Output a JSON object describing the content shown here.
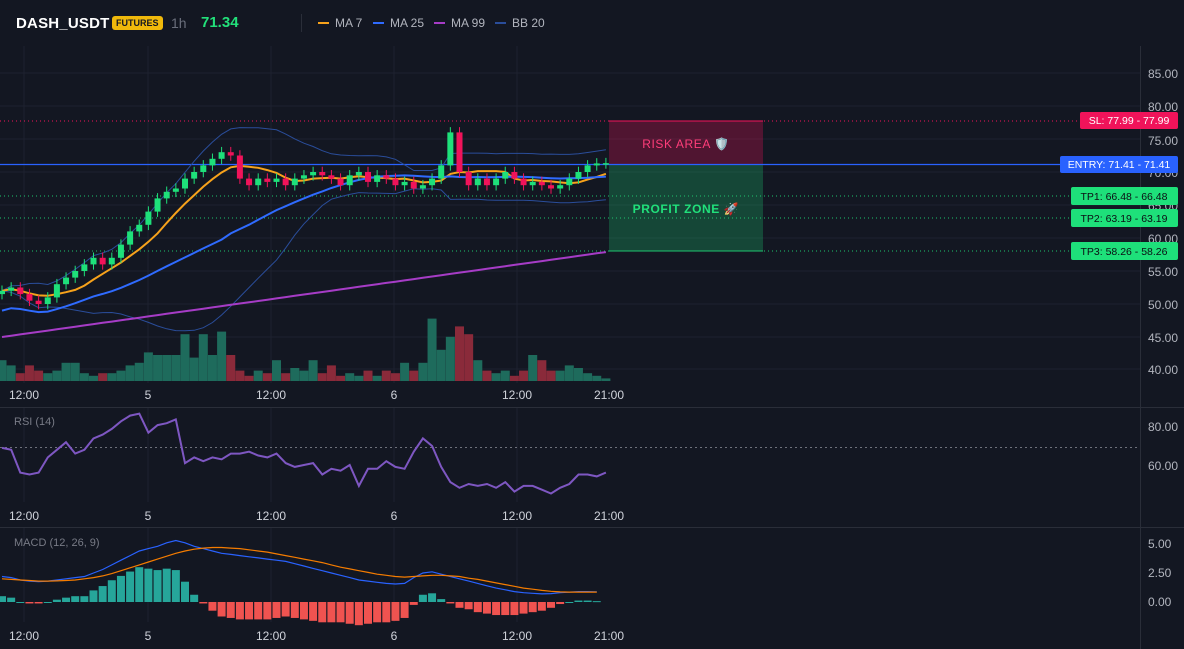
{
  "header": {
    "symbol": "DASH_USDT",
    "market_badge": "FUTURES",
    "timeframe": "1h",
    "last_price": "71.34",
    "legend": [
      {
        "label": "MA 7",
        "color": "#f7a21b"
      },
      {
        "label": "MA 25",
        "color": "#2f6bff"
      },
      {
        "label": "MA 99",
        "color": "#a63cc6"
      },
      {
        "label": "BB 20",
        "color": "#2a4d9a"
      }
    ]
  },
  "trade": {
    "sl_label": "SL: 77.99 - 77.99",
    "entry_label": "ENTRY: 71.41 - 71.41",
    "tp1_label": "TP1: 66.48 - 66.48",
    "tp2_label": "TP2: 63.19 - 63.19",
    "tp3_label": "TP3: 58.26 - 58.26",
    "risk_text": "RISK AREA 🛡️",
    "profit_text": "PROFIT ZONE 🚀",
    "sl": 77.99,
    "entry": 71.41,
    "tp1": 66.48,
    "tp2": 63.19,
    "tp3": 58.26,
    "colors": {
      "sl": "#f0135a",
      "entry": "#2962ff",
      "tp": "#1ec46f"
    }
  },
  "time_axis": [
    "12:00",
    "5",
    "12:00",
    "6",
    "12:00",
    "21:00"
  ],
  "price_axis": {
    "ticks": [
      "85.00",
      "80.00",
      "75.00",
      "70.00",
      "65.00",
      "60.00",
      "55.00",
      "50.00",
      "45.00",
      "40.00"
    ],
    "range": [
      38,
      88
    ]
  },
  "rsi": {
    "title": "RSI (14)",
    "ticks": [
      "80.00",
      "60.00"
    ],
    "range": [
      40,
      90
    ],
    "level": 70,
    "color": "#7e57c2",
    "values": [
      69,
      68,
      56,
      55,
      56,
      64,
      68,
      72,
      66,
      68,
      74,
      76,
      79,
      83,
      86,
      87,
      77,
      81,
      82,
      84,
      61,
      64,
      62,
      64,
      63,
      66,
      66,
      67,
      65,
      64,
      66,
      61,
      59,
      60,
      61,
      55,
      58,
      57,
      60,
      49,
      58,
      58,
      62,
      59,
      58,
      67,
      74,
      70,
      59,
      51,
      48,
      50,
      49,
      50,
      48,
      51,
      46,
      49,
      49,
      47,
      45,
      48,
      50,
      55,
      55,
      54,
      56
    ]
  },
  "macd": {
    "title": "MACD (12, 26, 9)",
    "ticks": [
      "5.00",
      "2.50",
      "0.00"
    ],
    "range": [
      -1.8,
      6.2
    ],
    "macd_color": "#2962ff",
    "signal_color": "#f57c00",
    "macd": [
      2.2,
      2.1,
      1.9,
      1.8,
      1.75,
      1.8,
      1.9,
      2.0,
      2.1,
      2.2,
      2.5,
      2.8,
      3.2,
      3.6,
      4.0,
      4.4,
      4.6,
      4.8,
      5.1,
      5.3,
      5.1,
      4.8,
      4.6,
      4.4,
      4.2,
      4.1,
      4.0,
      3.9,
      3.8,
      3.7,
      3.6,
      3.5,
      3.3,
      3.1,
      2.9,
      2.7,
      2.5,
      2.3,
      2.1,
      1.9,
      1.8,
      1.7,
      1.6,
      1.55,
      1.6,
      2.1,
      2.5,
      2.6,
      2.4,
      2.2,
      2.0,
      1.8,
      1.6,
      1.4,
      1.2,
      1.05,
      0.9,
      0.8,
      0.75,
      0.7,
      0.72,
      0.8,
      0.85,
      0.9,
      0.9,
      0.88
    ],
    "signal": [
      2.0,
      1.95,
      1.9,
      1.85,
      1.8,
      1.8,
      1.82,
      1.85,
      1.9,
      2.0,
      2.1,
      2.25,
      2.45,
      2.7,
      2.95,
      3.2,
      3.45,
      3.7,
      3.95,
      4.2,
      4.4,
      4.55,
      4.65,
      4.7,
      4.7,
      4.65,
      4.6,
      4.5,
      4.4,
      4.3,
      4.15,
      4.0,
      3.85,
      3.7,
      3.55,
      3.4,
      3.2,
      3.0,
      2.85,
      2.7,
      2.55,
      2.4,
      2.3,
      2.2,
      2.15,
      2.2,
      2.25,
      2.3,
      2.3,
      2.25,
      2.2,
      2.05,
      1.95,
      1.8,
      1.65,
      1.5,
      1.35,
      1.2,
      1.1,
      1.0,
      0.92,
      0.87,
      0.85,
      0.85,
      0.85,
      0.85
    ],
    "hist_pos_color": "#26a69a",
    "hist_neg_color": "#ef5350"
  }
}
